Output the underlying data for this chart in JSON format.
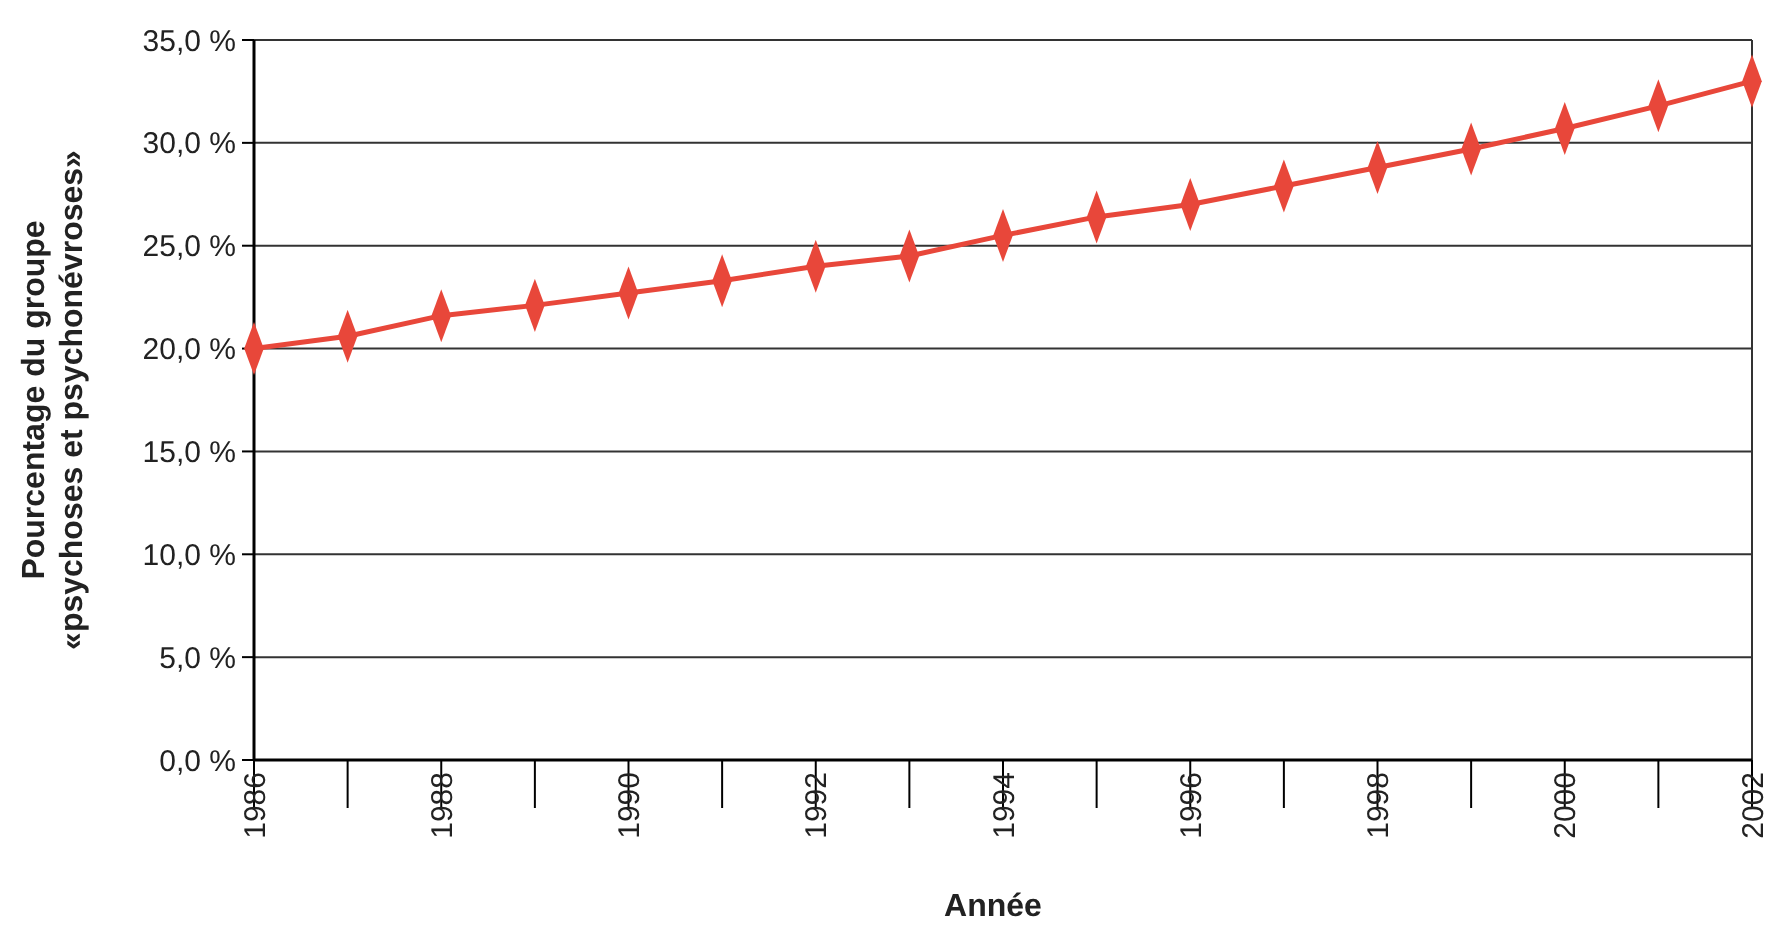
{
  "chart_data": {
    "type": "line",
    "xlabel": "Année",
    "ylabel": "Pourcentage du groupe\n«psychoses et psychonévroses»",
    "x": [
      1986,
      1987,
      1988,
      1989,
      1990,
      1991,
      1992,
      1993,
      1994,
      1995,
      1996,
      1997,
      1998,
      1999,
      2000,
      2001,
      2002
    ],
    "values": [
      20.0,
      20.6,
      21.6,
      22.1,
      22.7,
      23.3,
      24.0,
      24.5,
      25.5,
      26.4,
      27.0,
      27.9,
      28.8,
      29.7,
      30.7,
      31.8,
      33.0
    ],
    "color": "#e8473a",
    "marker": "diamond",
    "grid": "y",
    "xlim": [
      1986,
      2002
    ],
    "xticks": [
      1986,
      1988,
      1990,
      1992,
      1994,
      1996,
      1998,
      2000,
      2002
    ],
    "ylim": [
      0,
      35
    ],
    "yticks": [
      {
        "value": 0,
        "label": "0,0 %"
      },
      {
        "value": 5,
        "label": "5,0 %"
      },
      {
        "value": 10,
        "label": "10,0 %"
      },
      {
        "value": 15,
        "label": "15,0 %"
      },
      {
        "value": 20,
        "label": "20,0 %"
      },
      {
        "value": 25,
        "label": "25,0 %"
      },
      {
        "value": 30,
        "label": "30,0 %"
      },
      {
        "value": 35,
        "label": "35,0 %"
      }
    ]
  }
}
